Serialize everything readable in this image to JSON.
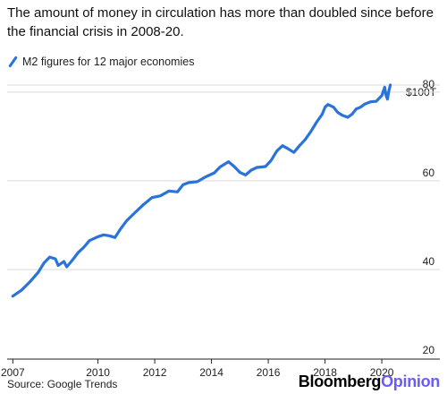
{
  "chart_data": {
    "type": "line",
    "title": "The amount of money in circulation has more than doubled since before the financial crisis in 2008-20.",
    "unit_label": "$100T",
    "series": [
      {
        "name": "M2 figures for 12 major economies",
        "color": "#2a73d9",
        "points": [
          [
            2007.0,
            34.0
          ],
          [
            2007.3,
            35.3
          ],
          [
            2007.6,
            37.2
          ],
          [
            2007.9,
            39.4
          ],
          [
            2008.1,
            41.5
          ],
          [
            2008.3,
            42.8
          ],
          [
            2008.5,
            42.4
          ],
          [
            2008.6,
            40.9
          ],
          [
            2008.8,
            41.8
          ],
          [
            2008.9,
            40.6
          ],
          [
            2009.1,
            42.1
          ],
          [
            2009.3,
            43.8
          ],
          [
            2009.5,
            45.0
          ],
          [
            2009.7,
            46.5
          ],
          [
            2010.0,
            47.4
          ],
          [
            2010.2,
            47.8
          ],
          [
            2010.4,
            47.6
          ],
          [
            2010.6,
            47.2
          ],
          [
            2010.8,
            49.2
          ],
          [
            2011.0,
            50.9
          ],
          [
            2011.3,
            52.8
          ],
          [
            2011.6,
            54.6
          ],
          [
            2011.9,
            56.2
          ],
          [
            2012.2,
            56.6
          ],
          [
            2012.5,
            57.7
          ],
          [
            2012.8,
            57.5
          ],
          [
            2013.0,
            59.1
          ],
          [
            2013.2,
            59.6
          ],
          [
            2013.5,
            59.8
          ],
          [
            2013.8,
            60.9
          ],
          [
            2014.1,
            61.8
          ],
          [
            2014.3,
            63.1
          ],
          [
            2014.6,
            64.3
          ],
          [
            2014.8,
            63.2
          ],
          [
            2015.0,
            61.9
          ],
          [
            2015.2,
            61.3
          ],
          [
            2015.4,
            62.4
          ],
          [
            2015.6,
            63.0
          ],
          [
            2015.9,
            63.2
          ],
          [
            2016.1,
            64.6
          ],
          [
            2016.3,
            66.7
          ],
          [
            2016.5,
            67.9
          ],
          [
            2016.7,
            67.2
          ],
          [
            2016.9,
            66.4
          ],
          [
            2017.1,
            67.9
          ],
          [
            2017.3,
            69.3
          ],
          [
            2017.5,
            71.1
          ],
          [
            2017.7,
            73.2
          ],
          [
            2017.9,
            75.0
          ],
          [
            2018.0,
            76.6
          ],
          [
            2018.1,
            77.2
          ],
          [
            2018.3,
            76.6
          ],
          [
            2018.45,
            75.4
          ],
          [
            2018.6,
            74.8
          ],
          [
            2018.8,
            74.3
          ],
          [
            2018.95,
            75.0
          ],
          [
            2019.1,
            76.2
          ],
          [
            2019.25,
            76.6
          ],
          [
            2019.4,
            77.3
          ],
          [
            2019.6,
            77.8
          ],
          [
            2019.8,
            77.9
          ],
          [
            2020.0,
            79.2
          ],
          [
            2020.1,
            81.1
          ],
          [
            2020.15,
            79.3
          ],
          [
            2020.2,
            78.4
          ],
          [
            2020.25,
            80.3
          ],
          [
            2020.3,
            81.6
          ]
        ]
      }
    ],
    "xlim": [
      2006.8,
      2021.1
    ],
    "ylim": [
      20,
      84
    ],
    "x_ticks": [
      {
        "value": 2007,
        "label": "2007"
      },
      {
        "value": 2010,
        "label": "2010"
      },
      {
        "value": 2012,
        "label": "2012"
      },
      {
        "value": 2014,
        "label": "2014"
      },
      {
        "value": 2016,
        "label": "2016"
      },
      {
        "value": 2018,
        "label": "2018"
      },
      {
        "value": 2020,
        "label": "2020"
      }
    ],
    "y_ticks": [
      {
        "value": 20,
        "label": "20"
      },
      {
        "value": 40,
        "label": "40"
      },
      {
        "value": 60,
        "label": "60"
      },
      {
        "value": 80,
        "label": "80"
      }
    ],
    "grid": "horizontal",
    "legend_position": "top-left"
  },
  "footer": {
    "source": "Source: Google Trends",
    "logo_main": "Bloomberg",
    "logo_accent": "Opinion"
  }
}
